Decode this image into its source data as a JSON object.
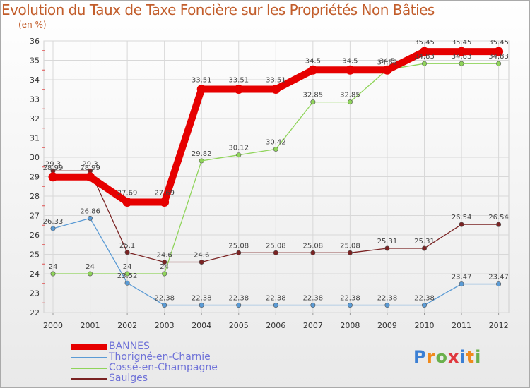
{
  "header": {
    "title": "Evolution du Taux de Taxe Foncière sur les Propriétés Non Bâties",
    "unit": "(en %)"
  },
  "logo": {
    "text": "Proxiti",
    "colors": [
      "#3b7fd4",
      "#f08a1c",
      "#6ab04c",
      "#e0383e",
      "#3b7fd4",
      "#f08a1c",
      "#6ab04c"
    ]
  },
  "chart_data": {
    "type": "line",
    "title": "Evolution du Taux de Taxe Foncière sur les Propriétés Non Bâties",
    "xlabel": "",
    "ylabel": "(en %)",
    "ylim": [
      22,
      36
    ],
    "yticks": [
      "22",
      "23",
      "24",
      "25",
      "26",
      "27",
      "28",
      "29",
      "30",
      "31",
      "32",
      "33",
      "34",
      "35",
      "36"
    ],
    "categories": [
      "2000",
      "2001",
      "2002",
      "2003",
      "2004",
      "2005",
      "2006",
      "2007",
      "2008",
      "2009",
      "2010",
      "2011",
      "2012"
    ],
    "grid": true,
    "series": [
      {
        "name": "BANNES",
        "color": "#e60000",
        "values": [
          28.99,
          28.99,
          27.69,
          27.69,
          33.51,
          33.51,
          33.51,
          34.5,
          34.5,
          34.5,
          35.45,
          35.45,
          35.45
        ],
        "labels": [
          "28.99",
          "28.99",
          "27.69",
          "27.69",
          "33.51",
          "33.51",
          "33.51",
          "34.5",
          "34.5",
          "34.5",
          "35.45",
          "35.45",
          "35.45"
        ]
      },
      {
        "name": "Thorigné-en-Charnie",
        "color": "#5b9bd5",
        "values": [
          26.33,
          26.86,
          23.52,
          22.38,
          22.38,
          22.38,
          22.38,
          22.38,
          22.38,
          22.38,
          22.38,
          23.47,
          23.47
        ],
        "labels": [
          "26.33",
          "26.86",
          "23.52",
          "22.38",
          "22.38",
          "22.38",
          "22.38",
          "22.38",
          "22.38",
          "22.38",
          "22.38",
          "23.47",
          "23.47"
        ]
      },
      {
        "name": "Cossé-en-Champagne",
        "color": "#8fd45a",
        "values": [
          24,
          24,
          24,
          24,
          29.82,
          30.12,
          30.42,
          32.85,
          32.85,
          34.52,
          34.83,
          34.83,
          34.83
        ],
        "labels": [
          "24",
          "24",
          "24",
          "24",
          "29.82",
          "30.12",
          "30.42",
          "32.85",
          "32.85",
          "34.52",
          "34.83",
          "34.83",
          "34.83"
        ]
      },
      {
        "name": "Saulges",
        "color": "#7a2323",
        "values": [
          29.3,
          29.3,
          25.1,
          24.6,
          24.6,
          25.08,
          25.08,
          25.08,
          25.08,
          25.31,
          25.31,
          26.54,
          26.54
        ],
        "labels": [
          "29.3",
          "29.3",
          "25.1",
          "24.6",
          "24.6",
          "25.08",
          "25.08",
          "25.08",
          "25.08",
          "25.31",
          "25.31",
          "26.54",
          "26.54"
        ]
      }
    ]
  }
}
